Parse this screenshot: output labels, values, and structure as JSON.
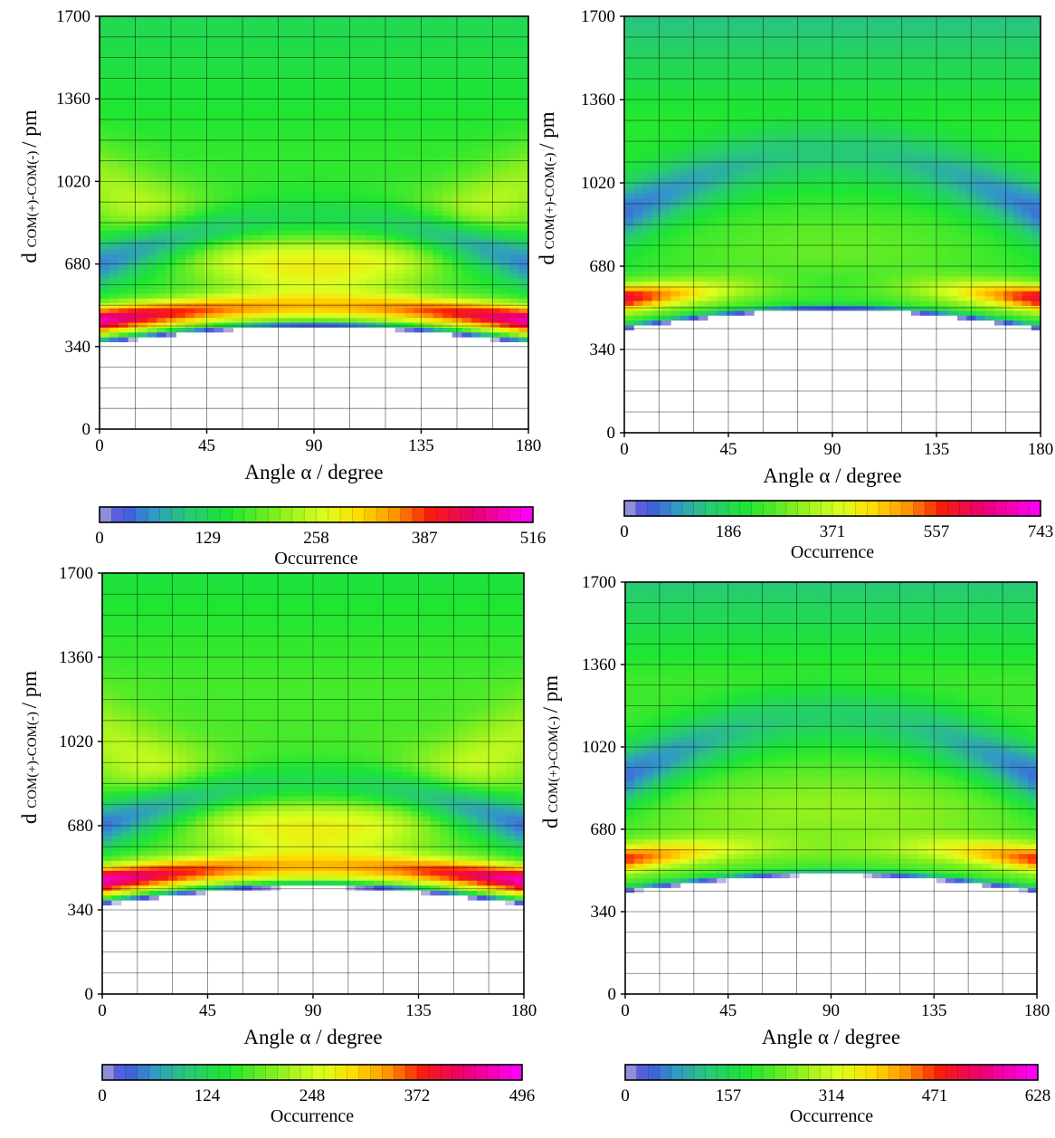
{
  "chart_data": [
    {
      "type": "heatmap",
      "panel": "top-left",
      "xlabel": "Angle α / degree",
      "ylabel_main": "d",
      "ylabel_sub": "COM(+)-COM(-)",
      "ylabel_unit": "/ pm",
      "xticks": [
        "0",
        "45",
        "90",
        "135",
        "180"
      ],
      "yticks": [
        "0",
        "340",
        "680",
        "1020",
        "1360",
        "1700"
      ],
      "xlim": [
        0,
        180
      ],
      "ylim": [
        0,
        1700
      ],
      "colorbar": {
        "ticks": [
          "0",
          "129",
          "258",
          "387",
          "516"
        ],
        "label": "Occurrence",
        "max": 516
      },
      "model": {
        "edge_min": 350,
        "center_min": 420,
        "edge_peak": 450,
        "center_peak": 510,
        "edge_peak_value": 480,
        "center_peak_value": 330,
        "peak_width": 55,
        "edge_valley": 680,
        "center_valley": 880,
        "edge_valley_value": 50,
        "center_valley_value": 135,
        "valley_width": 100,
        "edge_hump": 1000,
        "center_hump": 680,
        "edge_hump_value": 230,
        "center_hump_value": 290,
        "hump_width": 170,
        "far_value": 165,
        "far_start": 1150,
        "far_end": 1700,
        "far_end_value": 130,
        "rise_width": 22
      }
    },
    {
      "type": "heatmap",
      "panel": "top-right",
      "xlabel": "Angle α / degree",
      "ylabel_main": "d",
      "ylabel_sub": "COM(+)-COM(-)",
      "ylabel_unit": "/ pm",
      "xticks": [
        "0",
        "45",
        "90",
        "135",
        "180"
      ],
      "yticks": [
        "0",
        "340",
        "680",
        "1020",
        "1360",
        "1700"
      ],
      "xlim": [
        0,
        180
      ],
      "ylim": [
        0,
        1700
      ],
      "colorbar": {
        "ticks": [
          "0",
          "186",
          "371",
          "557",
          "743"
        ],
        "label": "Occurrence",
        "max": 743
      },
      "model": {
        "edge_min": 420,
        "center_min": 500,
        "edge_peak": 550,
        "center_peak": 600,
        "edge_peak_value": 620,
        "center_peak_value": 250,
        "peak_width": 55,
        "edge_valley": 900,
        "center_valley": 1150,
        "edge_valley_value": 60,
        "center_valley_value": 150,
        "valley_width": 120,
        "edge_hump": 700,
        "center_hump": 760,
        "edge_hump_value": 230,
        "center_hump_value": 280,
        "hump_width": 160,
        "far_value": 230,
        "far_start": 1300,
        "far_end": 1700,
        "far_end_value": 140,
        "rise_width": 22
      }
    },
    {
      "type": "heatmap",
      "panel": "bottom-left",
      "xlabel": "Angle α / degree",
      "ylabel_main": "d",
      "ylabel_sub": "COM(+)-COM(-)",
      "ylabel_unit": "/ pm",
      "xticks": [
        "0",
        "45",
        "90",
        "135",
        "180"
      ],
      "yticks": [
        "0",
        "340",
        "680",
        "1020",
        "1360",
        "1700"
      ],
      "xlim": [
        0,
        180
      ],
      "ylim": [
        0,
        1700
      ],
      "colorbar": {
        "ticks": [
          "0",
          "124",
          "248",
          "372",
          "496"
        ],
        "label": "Occurrence",
        "max": 496
      },
      "model": {
        "edge_min": 360,
        "center_min": 430,
        "edge_peak": 460,
        "center_peak": 520,
        "edge_peak_value": 470,
        "center_peak_value": 320,
        "peak_width": 55,
        "edge_valley": 680,
        "center_valley": 860,
        "edge_valley_value": 40,
        "center_valley_value": 130,
        "valley_width": 100,
        "edge_hump": 1030,
        "center_hump": 680,
        "edge_hump_value": 230,
        "center_hump_value": 280,
        "hump_width": 180,
        "far_value": 170,
        "far_start": 1250,
        "far_end": 1700,
        "far_end_value": 140,
        "rise_width": 22
      }
    },
    {
      "type": "heatmap",
      "panel": "bottom-right",
      "xlabel": "Angle α / degree",
      "ylabel_main": "d",
      "ylabel_sub": "COM(+)-COM(-)",
      "ylabel_unit": "/ pm",
      "xticks": [
        "0",
        "45",
        "90",
        "135",
        "180"
      ],
      "yticks": [
        "0",
        "340",
        "680",
        "1020",
        "1360",
        "1700"
      ],
      "xlim": [
        0,
        180
      ],
      "ylim": [
        0,
        1700
      ],
      "colorbar": {
        "ticks": [
          "0",
          "157",
          "314",
          "471",
          "628"
        ],
        "label": "Occurrence",
        "max": 628
      },
      "model": {
        "edge_min": 420,
        "center_min": 490,
        "edge_peak": 560,
        "center_peak": 620,
        "edge_peak_value": 480,
        "center_peak_value": 260,
        "peak_width": 55,
        "edge_valley": 900,
        "center_valley": 1150,
        "edge_valley_value": 50,
        "center_valley_value": 140,
        "valley_width": 120,
        "edge_hump": 700,
        "center_hump": 760,
        "edge_hump_value": 220,
        "center_hump_value": 270,
        "hump_width": 160,
        "far_value": 210,
        "far_start": 1300,
        "far_end": 1700,
        "far_end_value": 130,
        "rise_width": 22
      }
    }
  ]
}
